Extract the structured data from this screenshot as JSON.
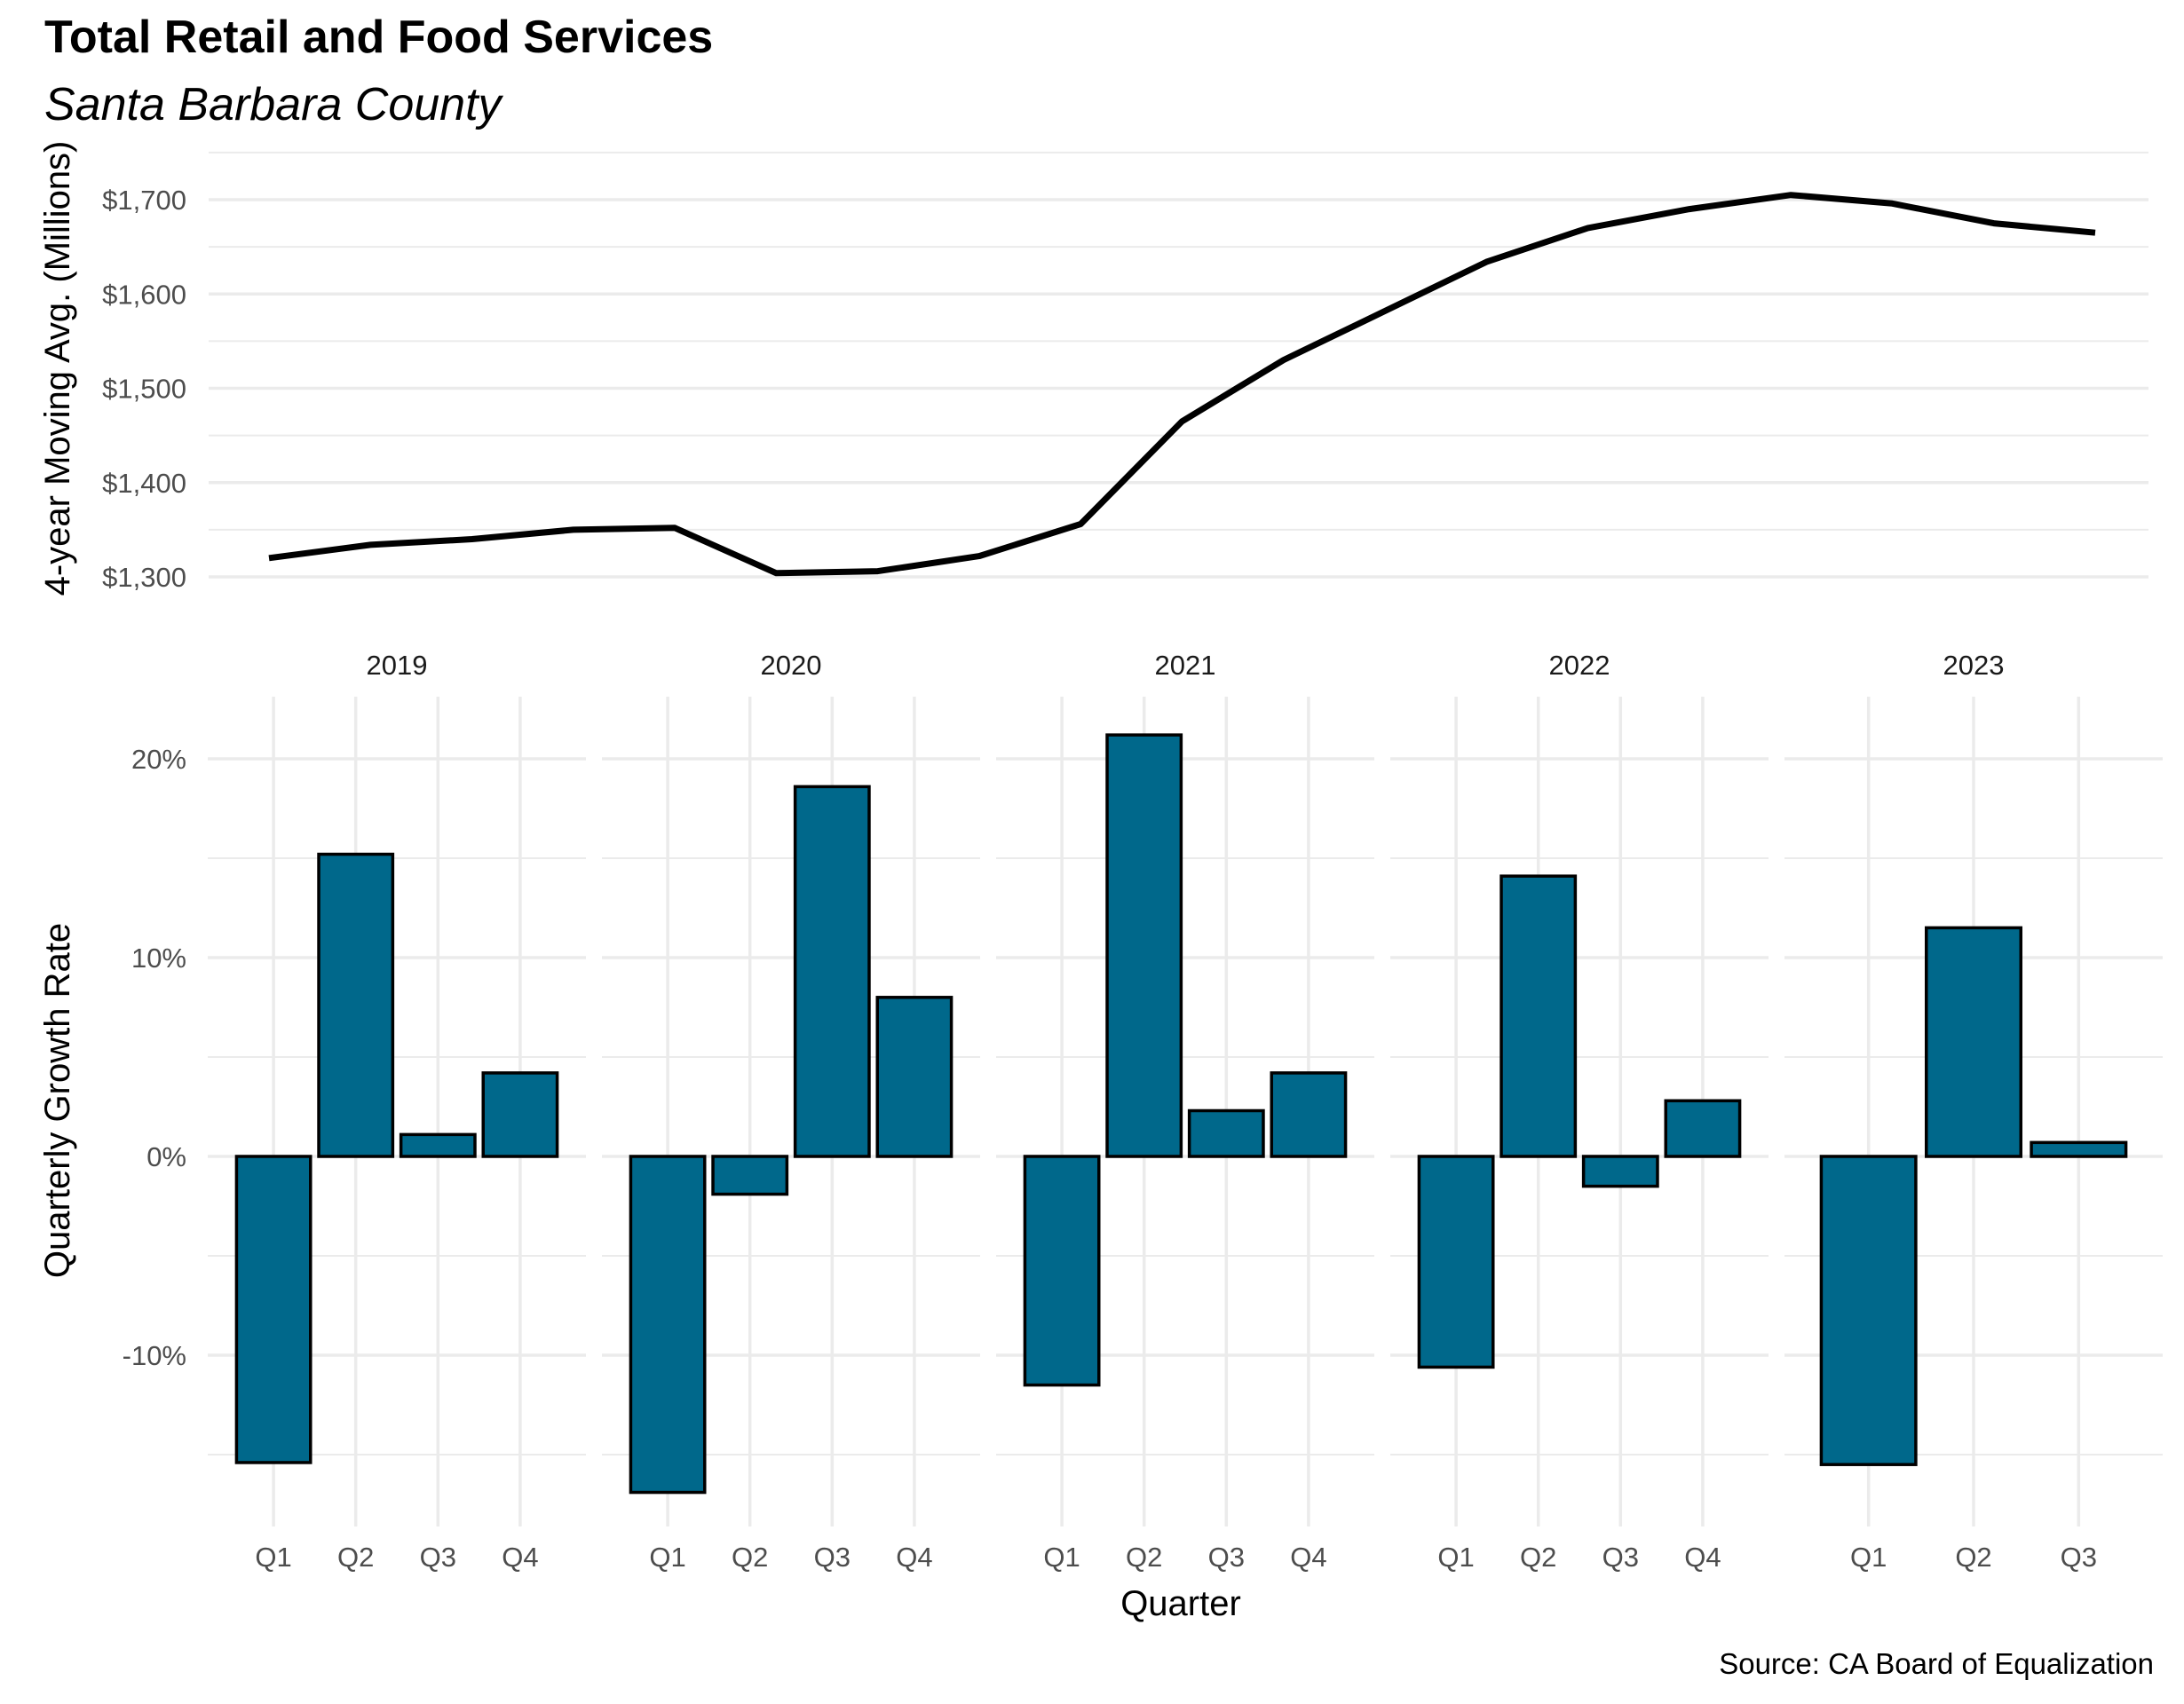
{
  "title": "Total Retail and Food Services",
  "subtitle": "Santa Barbara County",
  "caption": "Source: CA Board of Equalization",
  "colors": {
    "bar_fill": "#00688b",
    "bar_stroke": "#000000",
    "line": "#000000",
    "grid": "#ebebeb"
  },
  "chart_data": [
    {
      "type": "line",
      "title": "",
      "xlabel": "",
      "ylabel": "4-year Moving Avg. (Millions)",
      "ylim": [
        1300,
        1700
      ],
      "yticks": [
        1300,
        1400,
        1500,
        1600,
        1700
      ],
      "ytick_labels": [
        "$1,300",
        "$1,400",
        "$1,500",
        "$1,600",
        "$1,700"
      ],
      "grid": true,
      "x": [
        "2019 Q1",
        "2019 Q2",
        "2019 Q3",
        "2019 Q4",
        "2020 Q1",
        "2020 Q2",
        "2020 Q3",
        "2020 Q4",
        "2021 Q1",
        "2021 Q2",
        "2021 Q3",
        "2021 Q4",
        "2022 Q1",
        "2022 Q2",
        "2022 Q3",
        "2022 Q4",
        "2023 Q1",
        "2023 Q2",
        "2023 Q3"
      ],
      "values": [
        1320,
        1334,
        1340,
        1350,
        1352,
        1304,
        1306,
        1322,
        1356,
        1465,
        1530,
        1582,
        1634,
        1670,
        1690,
        1705,
        1696,
        1675,
        1665
      ]
    },
    {
      "type": "bar",
      "xlabel": "Quarter",
      "ylabel": "Quarterly Growth Rate",
      "ylim": [
        -15,
        20
      ],
      "yticks": [
        -10,
        0,
        10,
        20
      ],
      "ytick_labels": [
        "-10%",
        "0%",
        "10%",
        "20%"
      ],
      "grid": true,
      "facets": [
        {
          "year": "2019",
          "categories": [
            "Q1",
            "Q2",
            "Q3",
            "Q4"
          ],
          "values": [
            -15.4,
            15.2,
            1.1,
            4.2
          ]
        },
        {
          "year": "2020",
          "categories": [
            "Q1",
            "Q2",
            "Q3",
            "Q4"
          ],
          "values": [
            -16.9,
            -1.9,
            18.6,
            8.0
          ]
        },
        {
          "year": "2021",
          "categories": [
            "Q1",
            "Q2",
            "Q3",
            "Q4"
          ],
          "values": [
            -11.5,
            21.2,
            2.3,
            4.2
          ]
        },
        {
          "year": "2022",
          "categories": [
            "Q1",
            "Q2",
            "Q3",
            "Q4"
          ],
          "values": [
            -10.6,
            14.1,
            -1.5,
            2.8
          ]
        },
        {
          "year": "2023",
          "categories": [
            "Q1",
            "Q2",
            "Q3"
          ],
          "values": [
            -15.5,
            11.5,
            0.7
          ]
        }
      ]
    }
  ]
}
